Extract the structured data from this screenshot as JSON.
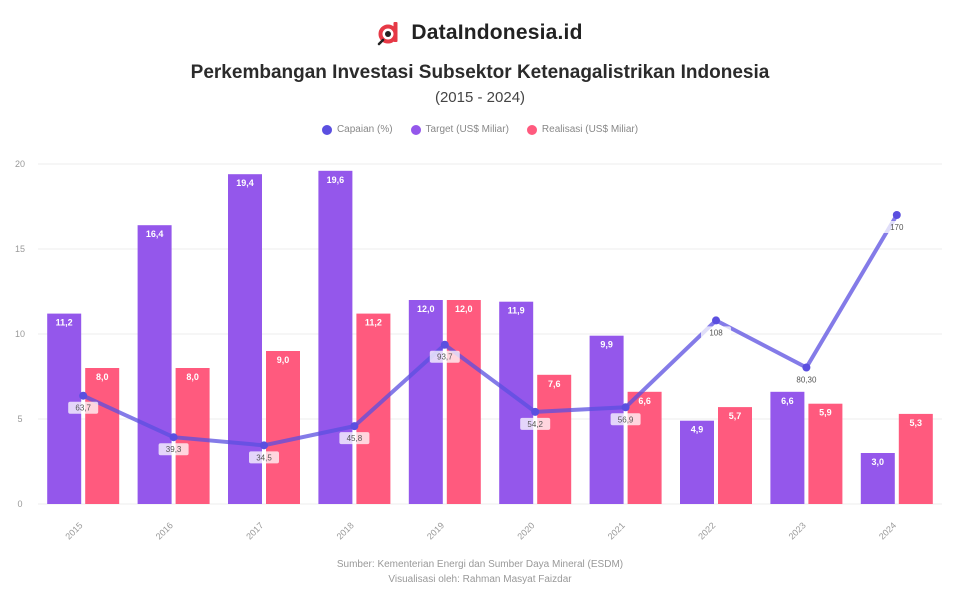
{
  "brand": {
    "name": "DataIndonesia.id",
    "logo_icon": "d-magnifier-logo-icon",
    "logo_color": "#e63946"
  },
  "title": "Perkembangan Investasi Subsektor Ketenagalistrikan Indonesia",
  "subtitle": "(2015 - 2024)",
  "legend": [
    {
      "label": "Capaian (%)",
      "color": "#5b4fe0"
    },
    {
      "label": "Target (US$ Miliar)",
      "color": "#9457eb"
    },
    {
      "label": "Realisasi (US$ Miliar)",
      "color": "#ff5a7e"
    }
  ],
  "source": {
    "line1": "Sumber: Kementerian Energi dan Sumber Daya Mineral (ESDM)",
    "line2": "Visualisasi oleh: Rahman Masyat Faizdar"
  },
  "chart_data": {
    "type": "bar",
    "categories": [
      "2015",
      "2016",
      "2017",
      "2018",
      "2019",
      "2020",
      "2021",
      "2022",
      "2023",
      "2024"
    ],
    "ylim": [
      0,
      20
    ],
    "yticks": [
      "0",
      "5",
      "10",
      "15",
      "20"
    ],
    "grid": true,
    "legend_position": "top-center",
    "series": [
      {
        "name": "Target (US$ Miliar)",
        "type": "bar",
        "color": "#9457eb",
        "values": [
          11.2,
          16.4,
          19.4,
          19.6,
          12.0,
          11.9,
          9.9,
          4.9,
          6.6,
          3.0
        ],
        "labels": [
          "11,2",
          "16,4",
          "19,4",
          "19,6",
          "12,0",
          "11,9",
          "9,9",
          "4,9",
          "6,6",
          "3,0"
        ]
      },
      {
        "name": "Realisasi (US$ Miliar)",
        "type": "bar",
        "color": "#ff5a7e",
        "values": [
          8.0,
          8.0,
          9.0,
          11.2,
          12.0,
          7.6,
          6.6,
          5.7,
          5.9,
          5.3
        ],
        "labels": [
          "8,0",
          "8,0",
          "9,0",
          "11,2",
          "12,0",
          "7,6",
          "6,6",
          "5,7",
          "5,9",
          "5,3"
        ]
      },
      {
        "name": "Capaian (%)",
        "type": "line",
        "color": "#5b4fe0",
        "values": [
          63.7,
          39.3,
          34.5,
          45.8,
          93.7,
          54.2,
          56.9,
          108.0,
          80.3,
          170.0
        ],
        "labels": [
          "63,7",
          "39,3",
          "34,5",
          "45,8",
          "93,7",
          "54,2",
          "56,9",
          "108",
          "80,30",
          "170"
        ]
      }
    ]
  }
}
